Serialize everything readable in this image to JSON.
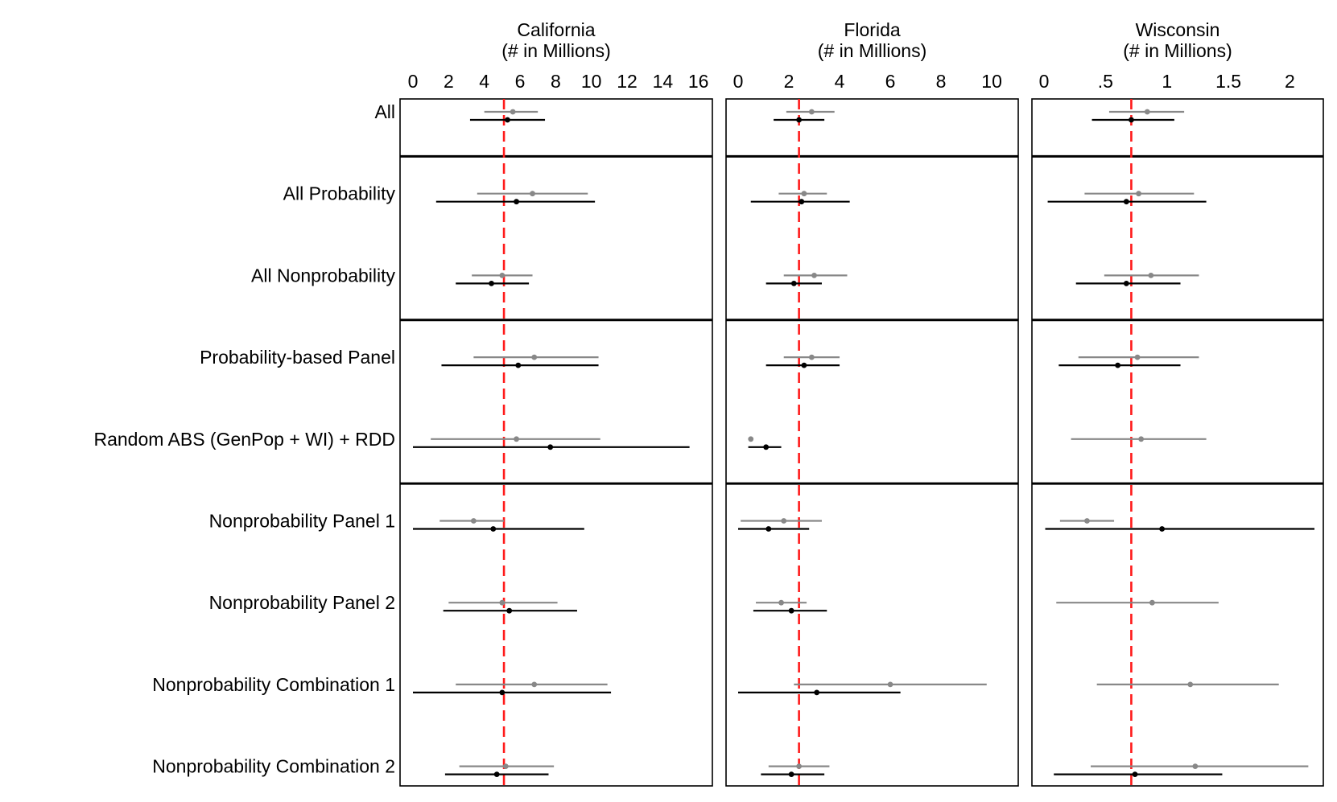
{
  "chart_data": {
    "type": "forest",
    "row_labels": [
      "All",
      "All Probability",
      "All Nonprobability",
      "Probability-based Panel",
      "Random ABS (GenPop + WI) + RDD",
      "Nonprobability Panel 1",
      "Nonprobability Panel 2",
      "Nonprobability Combination 1",
      "Nonprobability Combination 2"
    ],
    "row_groups": [
      [
        0
      ],
      [
        1,
        2
      ],
      [
        3,
        4
      ],
      [
        5,
        6,
        7,
        8
      ]
    ],
    "colors": {
      "gray_estimate": "#888888",
      "black_estimate": "#000000",
      "reference_line": "#ff1a1a",
      "frame": "#000000"
    },
    "panels": [
      {
        "title_line1": "California",
        "title_line2": "(# in Millions)",
        "xlim": [
          0,
          16.6
        ],
        "ticks": [
          0,
          2,
          4,
          6,
          8,
          10,
          12,
          14,
          16
        ],
        "tick_labels": [
          "0",
          "2",
          "4",
          "6",
          "8",
          "10",
          "12",
          "14",
          "16"
        ],
        "reference": 5.1,
        "gray": [
          {
            "est": 5.6,
            "lo": 4.0,
            "hi": 7.0
          },
          {
            "est": 6.7,
            "lo": 3.6,
            "hi": 9.8
          },
          {
            "est": 5.0,
            "lo": 3.3,
            "hi": 6.7
          },
          {
            "est": 6.8,
            "lo": 3.4,
            "hi": 10.4
          },
          {
            "est": 5.8,
            "lo": 1.0,
            "hi": 10.5
          },
          {
            "est": 3.4,
            "lo": 1.5,
            "hi": 5.1
          },
          {
            "est": 5.0,
            "lo": 2.0,
            "hi": 8.1
          },
          {
            "est": 6.8,
            "lo": 2.4,
            "hi": 10.9
          },
          {
            "est": 5.2,
            "lo": 2.6,
            "hi": 7.9
          }
        ],
        "black": [
          {
            "est": 5.3,
            "lo": 3.2,
            "hi": 7.4
          },
          {
            "est": 5.8,
            "lo": 1.3,
            "hi": 10.2
          },
          {
            "est": 4.4,
            "lo": 2.4,
            "hi": 6.5
          },
          {
            "est": 5.9,
            "lo": 1.6,
            "hi": 10.4
          },
          {
            "est": 7.7,
            "lo": 0.0,
            "hi": 15.5
          },
          {
            "est": 4.5,
            "lo": 0.0,
            "hi": 9.6
          },
          {
            "est": 5.4,
            "lo": 1.7,
            "hi": 9.2
          },
          {
            "est": 5.0,
            "lo": 0.0,
            "hi": 11.1
          },
          {
            "est": 4.7,
            "lo": 1.8,
            "hi": 7.6
          }
        ]
      },
      {
        "title_line1": "Florida",
        "title_line2": "(# in Millions)",
        "xlim": [
          0,
          10.6
        ],
        "ticks": [
          0,
          2,
          4,
          6,
          8,
          10
        ],
        "tick_labels": [
          "0",
          "2",
          "4",
          "6",
          "8",
          "10"
        ],
        "reference": 2.4,
        "gray": [
          {
            "est": 2.9,
            "lo": 1.9,
            "hi": 3.8
          },
          {
            "est": 2.6,
            "lo": 1.6,
            "hi": 3.5
          },
          {
            "est": 3.0,
            "lo": 1.8,
            "hi": 4.3
          },
          {
            "est": 2.9,
            "lo": 1.8,
            "hi": 4.0
          },
          {
            "est": 0.5,
            "lo": 0.5,
            "hi": 0.5
          },
          {
            "est": 1.8,
            "lo": 0.1,
            "hi": 3.3
          },
          {
            "est": 1.7,
            "lo": 0.7,
            "hi": 2.7
          },
          {
            "est": 6.0,
            "lo": 2.2,
            "hi": 9.8
          },
          {
            "est": 2.4,
            "lo": 1.2,
            "hi": 3.6
          }
        ],
        "black": [
          {
            "est": 2.4,
            "lo": 1.4,
            "hi": 3.4
          },
          {
            "est": 2.5,
            "lo": 0.5,
            "hi": 4.4
          },
          {
            "est": 2.2,
            "lo": 1.1,
            "hi": 3.3
          },
          {
            "est": 2.6,
            "lo": 1.1,
            "hi": 4.0
          },
          {
            "est": 1.1,
            "lo": 0.4,
            "hi": 1.7
          },
          {
            "est": 1.2,
            "lo": 0.0,
            "hi": 2.8
          },
          {
            "est": 2.1,
            "lo": 0.6,
            "hi": 3.5
          },
          {
            "est": 3.1,
            "lo": 0.0,
            "hi": 6.4
          },
          {
            "est": 2.1,
            "lo": 0.9,
            "hi": 3.4
          }
        ]
      },
      {
        "title_line1": "Wisconsin",
        "title_line2": "(# in Millions)",
        "xlim": [
          0,
          2.2
        ],
        "ticks": [
          0,
          0.5,
          1,
          1.5,
          2
        ],
        "tick_labels": [
          "0",
          ".5",
          "1",
          "1.5",
          "2"
        ],
        "reference": 0.71,
        "gray": [
          {
            "est": 0.84,
            "lo": 0.53,
            "hi": 1.14
          },
          {
            "est": 0.77,
            "lo": 0.33,
            "hi": 1.22
          },
          {
            "est": 0.87,
            "lo": 0.49,
            "hi": 1.26
          },
          {
            "est": 0.76,
            "lo": 0.28,
            "hi": 1.26
          },
          {
            "est": 0.79,
            "lo": 0.22,
            "hi": 1.32
          },
          {
            "est": 0.35,
            "lo": 0.13,
            "hi": 0.57
          },
          {
            "est": 0.88,
            "lo": 0.1,
            "hi": 1.42
          },
          {
            "est": 1.19,
            "lo": 0.43,
            "hi": 1.91
          },
          {
            "est": 1.23,
            "lo": 0.38,
            "hi": 2.15
          }
        ],
        "black": [
          {
            "est": 0.71,
            "lo": 0.39,
            "hi": 1.06
          },
          {
            "est": 0.67,
            "lo": 0.03,
            "hi": 1.32
          },
          {
            "est": 0.67,
            "lo": 0.26,
            "hi": 1.11
          },
          {
            "est": 0.6,
            "lo": 0.12,
            "hi": 1.11
          },
          {
            "est": null,
            "lo": null,
            "hi": null
          },
          {
            "est": 0.96,
            "lo": 0.01,
            "hi": 2.2
          },
          {
            "est": null,
            "lo": null,
            "hi": null
          },
          {
            "est": null,
            "lo": null,
            "hi": null
          },
          {
            "est": 0.74,
            "lo": 0.08,
            "hi": 1.45
          }
        ]
      }
    ]
  }
}
